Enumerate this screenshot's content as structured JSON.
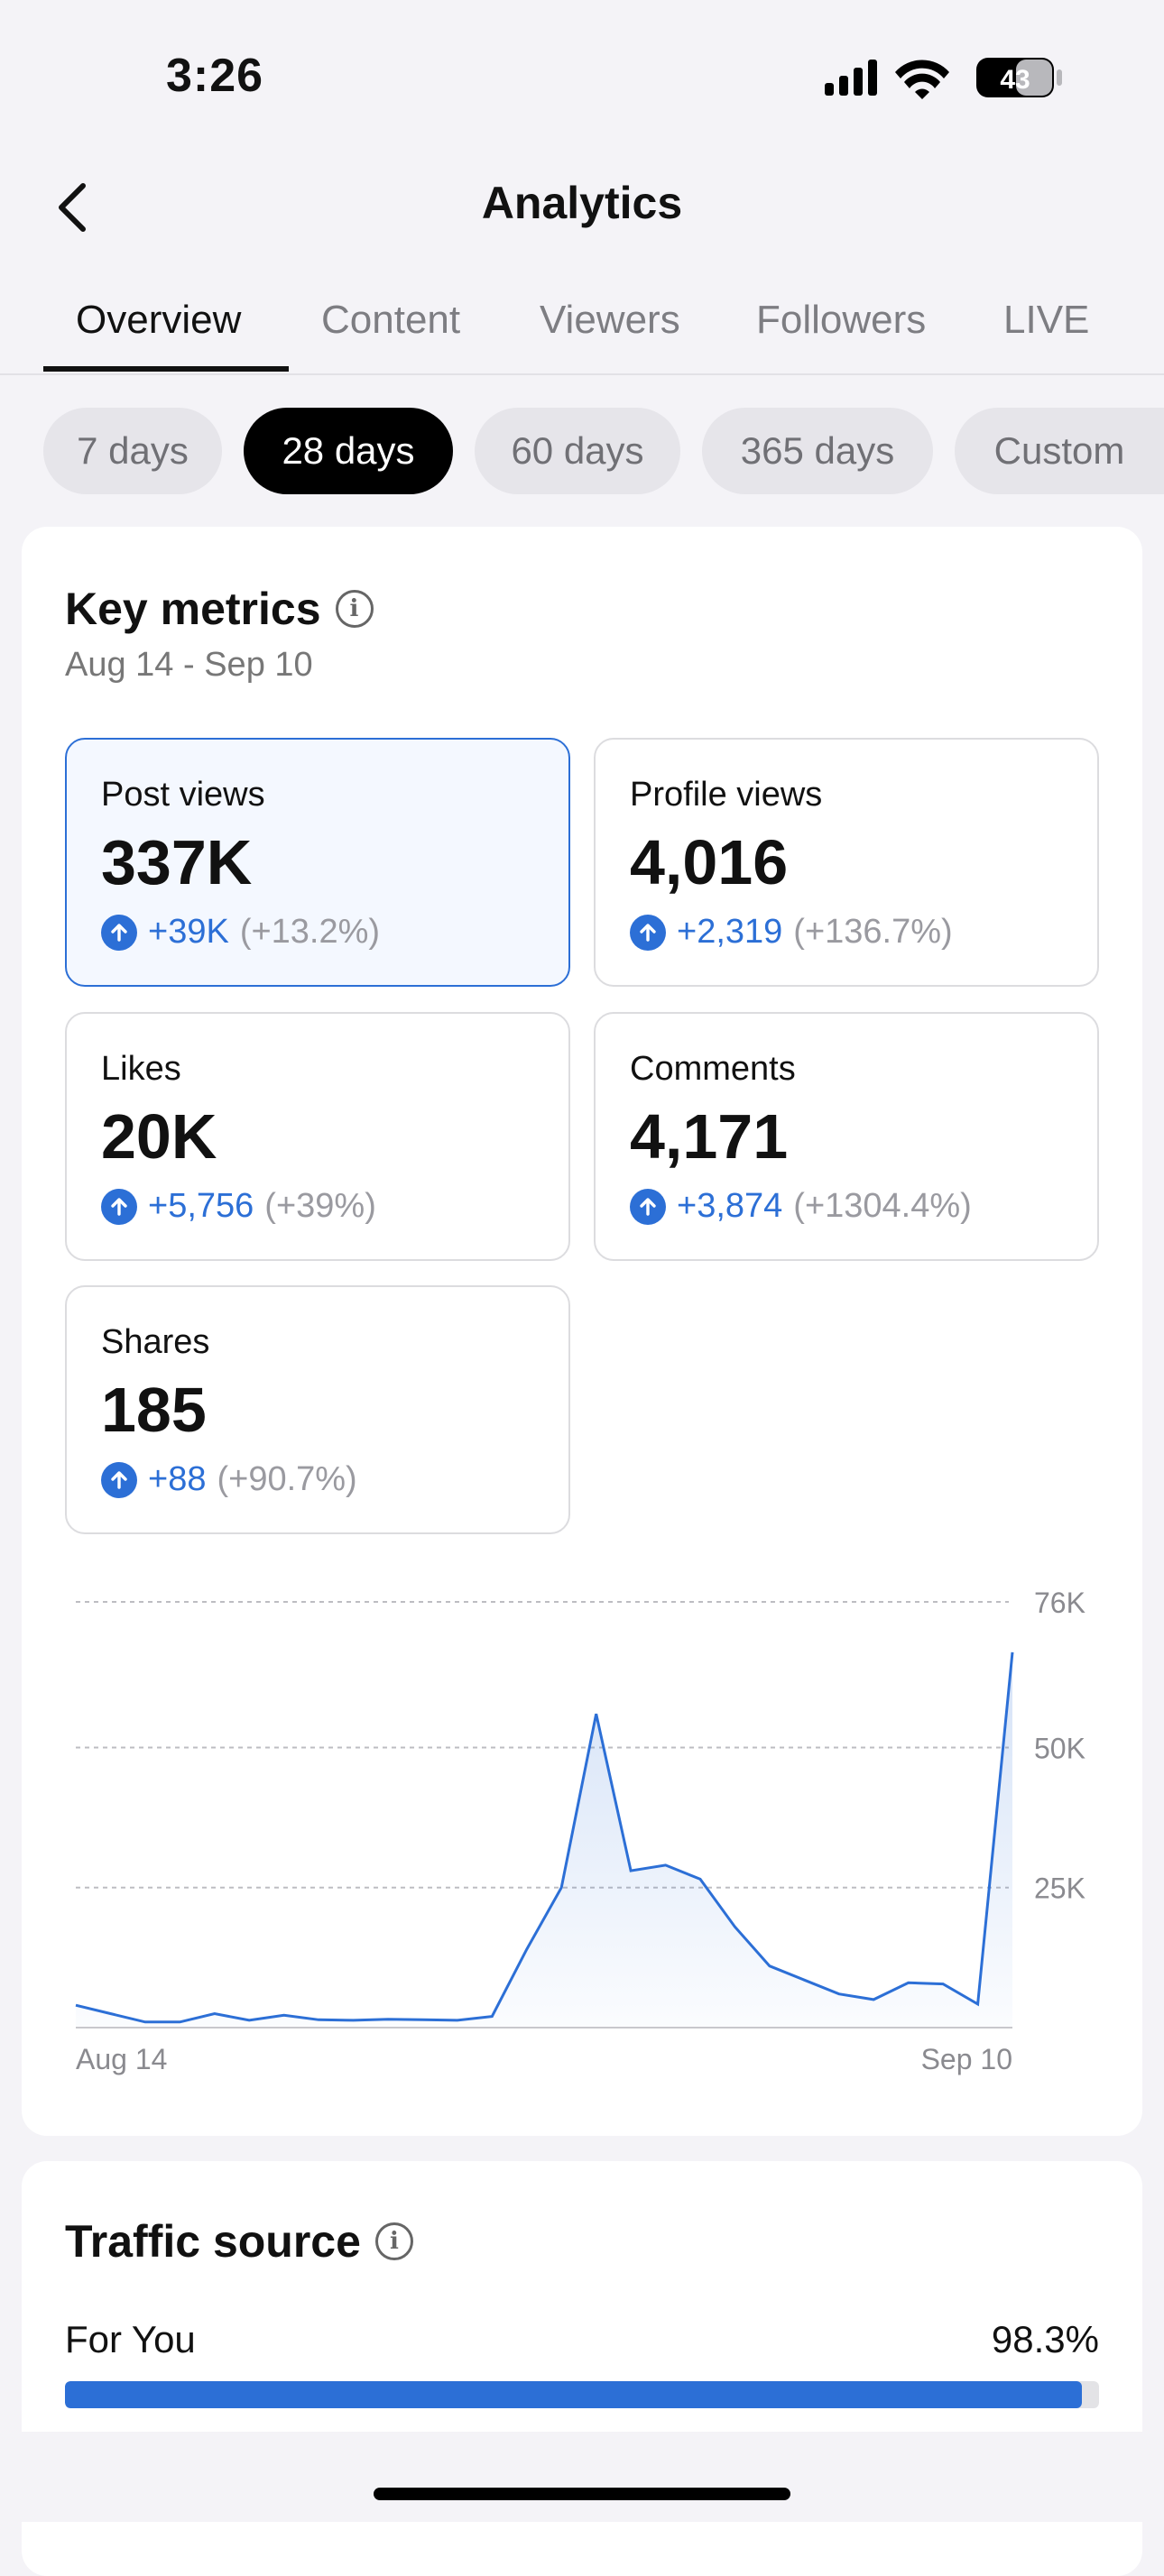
{
  "status_bar": {
    "time": "3:26",
    "battery": "43"
  },
  "header": {
    "title": "Analytics"
  },
  "tabs": [
    {
      "label": "Overview",
      "active": true
    },
    {
      "label": "Content"
    },
    {
      "label": "Viewers"
    },
    {
      "label": "Followers"
    },
    {
      "label": "LIVE"
    }
  ],
  "periods": [
    {
      "label": "7 days"
    },
    {
      "label": "28 days",
      "active": true
    },
    {
      "label": "60 days"
    },
    {
      "label": "365 days"
    },
    {
      "label": "Custom"
    }
  ],
  "key_metrics": {
    "title": "Key metrics",
    "date_range": "Aug 14 - Sep 10",
    "metrics": [
      {
        "label": "Post views",
        "value": "337K",
        "delta": "+39K",
        "pct": "(+13.2%)"
      },
      {
        "label": "Profile views",
        "value": "4,016",
        "delta": "+2,319",
        "pct": "(+136.7%)"
      },
      {
        "label": "Likes",
        "value": "20K",
        "delta": "+5,756",
        "pct": "(+39%)"
      },
      {
        "label": "Comments",
        "value": "4,171",
        "delta": "+3,874",
        "pct": "(+1304.4%)"
      },
      {
        "label": "Shares",
        "value": "185",
        "delta": "+88",
        "pct": "(+90.7%)"
      }
    ]
  },
  "chart_data": {
    "type": "area",
    "title": "Post views",
    "x_labels": [
      "Aug 14",
      "Sep 10"
    ],
    "y_ticks": [
      {
        "label": "76K",
        "value": 76000
      },
      {
        "label": "50K",
        "value": 50000
      },
      {
        "label": "25K",
        "value": 25000
      }
    ],
    "ylim": [
      0,
      76000
    ],
    "values": [
      4000,
      2500,
      1000,
      1000,
      2500,
      1300,
      2200,
      1400,
      1300,
      1500,
      1400,
      1300,
      2000,
      14000,
      25000,
      56000,
      28000,
      29000,
      26500,
      18000,
      11000,
      8500,
      6000,
      5000,
      8000,
      7800,
      4200,
      67000
    ],
    "accent": "#2c6fd6"
  },
  "traffic_source": {
    "title": "Traffic source",
    "items": [
      {
        "label": "For You",
        "pct_label": "98.3%",
        "fraction": 0.983
      }
    ]
  }
}
